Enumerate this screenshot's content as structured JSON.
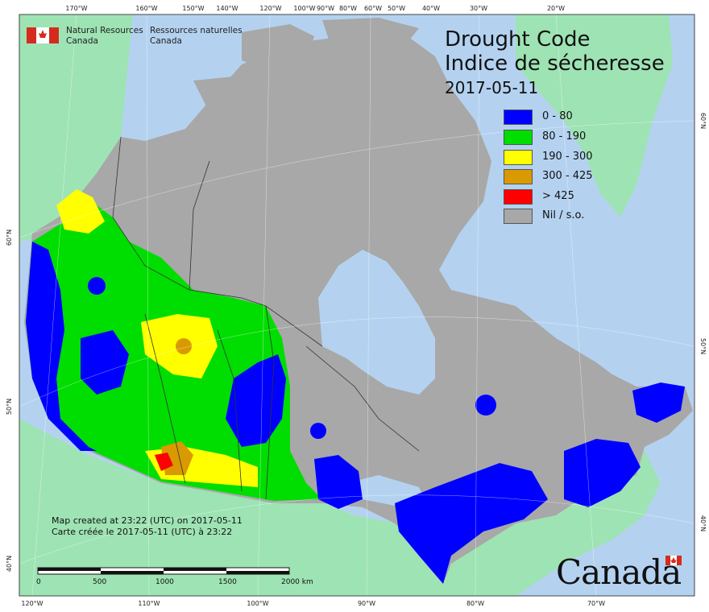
{
  "agency": {
    "en_line1": "Natural Resources",
    "en_line2": "Canada",
    "fr_line1": "Ressources naturelles",
    "fr_line2": "Canada"
  },
  "title": {
    "line1": "Drought Code",
    "line2": "Indice de sécheresse",
    "date": "2017-05-11"
  },
  "legend": [
    {
      "label": "0 - 80",
      "color": "#0000ff"
    },
    {
      "label": "80 - 190",
      "color": "#00dd00"
    },
    {
      "label": "190 - 300",
      "color": "#ffff00"
    },
    {
      "label": "300 - 425",
      "color": "#d89a00"
    },
    {
      "label": "> 425",
      "color": "#ff0000"
    },
    {
      "label": "Nil / s.o.",
      "color": "#a8a8a8"
    }
  ],
  "created": {
    "en": "Map created at 23:22 (UTC) on 2017-05-11",
    "fr": "Carte créée le 2017-05-11 (UTC) à 23:22"
  },
  "scale_labels": [
    "0",
    "500",
    "1000",
    "1500",
    "2000  km"
  ],
  "wordmark": "Canada",
  "top_ticks": [
    "170°W",
    "160°W",
    "150°W",
    "140°W",
    "120°W",
    "100°W",
    "90°W",
    "80°W",
    "60°W",
    "50°W",
    "40°W",
    "30°W",
    "20°W"
  ],
  "bottom_ticks": [
    "120°W",
    "110°W",
    "100°W",
    "90°W",
    "80°W",
    "70°W"
  ],
  "left_ticks": [
    "60°N",
    "50°N",
    "40°N"
  ],
  "right_ticks": [
    "60°N",
    "50°N",
    "40°N"
  ],
  "colors": {
    "ocean": "#b4d2f0",
    "foreign_land": "#9ee3b4",
    "canada_nil": "#a8a8a8",
    "low": "#0000ff",
    "moderate": "#00dd00",
    "high": "#ffff00",
    "very_high": "#d89a00",
    "extreme": "#ff0000"
  }
}
